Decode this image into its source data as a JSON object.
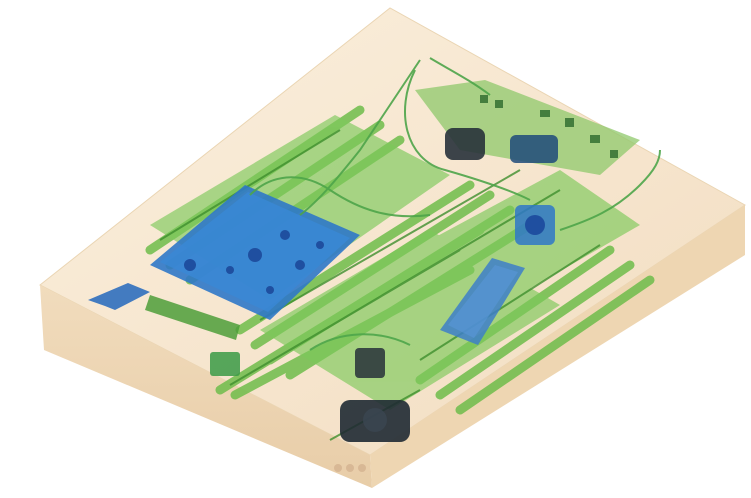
{
  "image": {
    "kind": "x-ray scan of a box",
    "palette": {
      "background": "#ffffff",
      "case_fill": "#f6e5cc",
      "case_edge": "#e7cfa9",
      "green_metal": "#72c04f",
      "green_dark": "#3f8f2e",
      "blue_metal": "#2f78c8",
      "blue_deep": "#1f4fa0",
      "dark_component": "#27313a"
    }
  }
}
